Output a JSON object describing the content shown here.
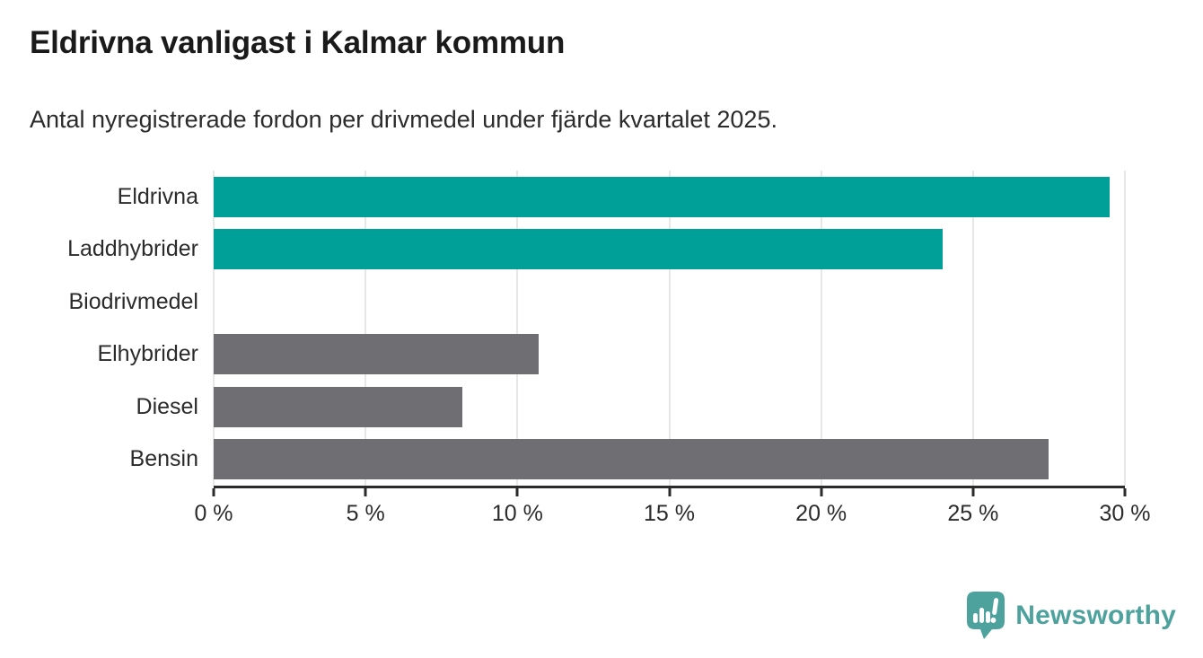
{
  "header": {
    "title": "Eldrivna vanligast i Kalmar kommun",
    "subtitle": "Antal nyregistrerade fordon per drivmedel under fjärde kvartalet 2025."
  },
  "chart_data": {
    "type": "bar",
    "orientation": "horizontal",
    "title": "Eldrivna vanligast i Kalmar kommun",
    "subtitle": "Antal nyregistrerade fordon per drivmedel under fjärde kvartalet 2025.",
    "categories": [
      "Eldrivna",
      "Laddhybrider",
      "Biodrivmedel",
      "Elhybrider",
      "Diesel",
      "Bensin"
    ],
    "values": [
      29.5,
      24.0,
      0,
      10.7,
      8.2,
      27.5
    ],
    "unit": "%",
    "bar_colors": [
      "#00a099",
      "#00a099",
      "#6e6e73",
      "#6e6e73",
      "#6e6e73",
      "#6e6e73"
    ],
    "highlight_color": "#00a099",
    "default_color": "#6e6e73",
    "xlabel": "",
    "ylabel": "",
    "xlim": [
      0,
      30
    ],
    "x_ticks": [
      0,
      5,
      10,
      15,
      20,
      25,
      30
    ],
    "x_tick_labels": [
      "0 %",
      "5 %",
      "10 %",
      "15 %",
      "20 %",
      "25 %",
      "30 %"
    ],
    "grid": true,
    "gridline_color": "#e7e7e7",
    "legend": "none"
  },
  "footer": {
    "brand": "Newsworthy",
    "brand_color": "#4da29d"
  }
}
